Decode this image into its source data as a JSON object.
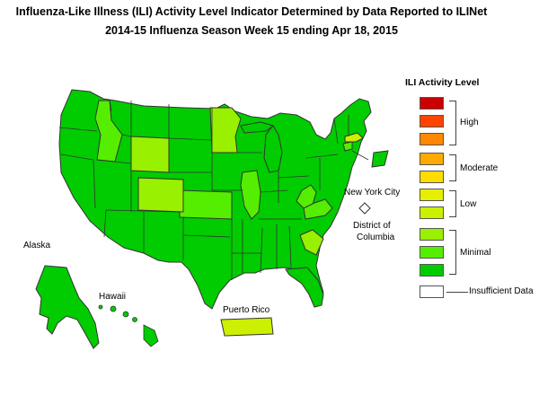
{
  "title_line1": "Influenza-Like Illness (ILI) Activity Level Indicator Determined by Data Reported to ILINet",
  "title_line2": "2014-15  Influenza Season Week  15 ending Apr 18, 2015",
  "map_labels": {
    "alaska": "Alaska",
    "hawaii": "Hawaii",
    "puerto_rico": "Puerto Rico",
    "new_york_city": "New York City",
    "district_of_columbia_line1": "District of",
    "district_of_columbia_line2": "Columbia"
  },
  "legend": {
    "title": "ILI Activity Level",
    "swatches": [
      {
        "level": 10,
        "color": "#cc0000"
      },
      {
        "level": 9,
        "color": "#ff4400"
      },
      {
        "level": 8,
        "color": "#ff8800"
      },
      {
        "level": 7,
        "color": "#ffaa00"
      },
      {
        "level": 6,
        "color": "#ffdd00"
      },
      {
        "level": 5,
        "color": "#e5f000"
      },
      {
        "level": 4,
        "color": "#ccf000"
      },
      {
        "level": 3,
        "color": "#99f000"
      },
      {
        "level": 2,
        "color": "#55ee00"
      },
      {
        "level": 1,
        "color": "#00cc00"
      },
      {
        "level": 0,
        "color": "#ffffff"
      }
    ],
    "groups": {
      "high": "High",
      "moderate": "Moderate",
      "low": "Low",
      "minimal": "Minimal",
      "insufficient": "Insufficient Data"
    }
  },
  "colors": {
    "level1": "#00cc00",
    "level2": "#55ee00",
    "level3": "#99f000",
    "level4": "#ccf000",
    "border": "#333333"
  }
}
